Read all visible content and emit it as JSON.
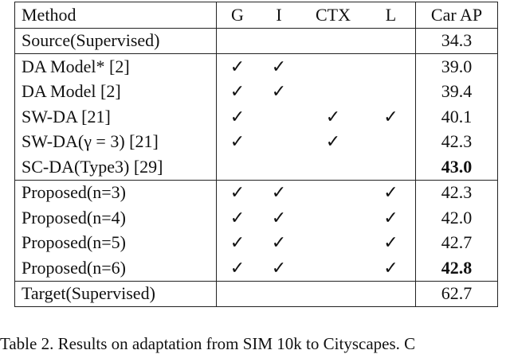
{
  "table": {
    "headers": [
      "Method",
      "G",
      "I",
      "CTX",
      "L",
      "Car AP"
    ],
    "rows": [
      {
        "method": "Source(Supervised)",
        "g": "",
        "i": "",
        "ctx": "",
        "l": "",
        "ap": "34.3",
        "bold": false
      },
      {
        "method": "DA Model* [2]",
        "g": "✓",
        "i": "✓",
        "ctx": "",
        "l": "",
        "ap": "39.0",
        "bold": false
      },
      {
        "method": "DA Model [2]",
        "g": "✓",
        "i": "✓",
        "ctx": "",
        "l": "",
        "ap": "39.4",
        "bold": false
      },
      {
        "method": "SW-DA [21]",
        "g": "✓",
        "i": "",
        "ctx": "✓",
        "l": "✓",
        "ap": "40.1",
        "bold": false
      },
      {
        "method": "SW-DA(γ = 3) [21]",
        "g": "✓",
        "i": "",
        "ctx": "✓",
        "l": "",
        "ap": "42.3",
        "bold": false
      },
      {
        "method": "SC-DA(Type3) [29]",
        "g": "",
        "i": "",
        "ctx": "",
        "l": "",
        "ap": "43.0",
        "bold": true
      },
      {
        "method": "Proposed(n=3)",
        "g": "✓",
        "i": "✓",
        "ctx": "",
        "l": "✓",
        "ap": "42.3",
        "bold": false
      },
      {
        "method": "Proposed(n=4)",
        "g": "✓",
        "i": "✓",
        "ctx": "",
        "l": "✓",
        "ap": "42.0",
        "bold": false
      },
      {
        "method": "Proposed(n=5)",
        "g": "✓",
        "i": "✓",
        "ctx": "",
        "l": "✓",
        "ap": "42.7",
        "bold": false
      },
      {
        "method": "Proposed(n=6)",
        "g": "✓",
        "i": "✓",
        "ctx": "",
        "l": "✓",
        "ap": "42.8",
        "bold": true
      },
      {
        "method": "Target(Supervised)",
        "g": "",
        "i": "",
        "ctx": "",
        "l": "",
        "ap": "62.7",
        "bold": false
      }
    ]
  },
  "caption": "Table 2. Results on adaptation from SIM 10k to Cityscapes. C"
}
